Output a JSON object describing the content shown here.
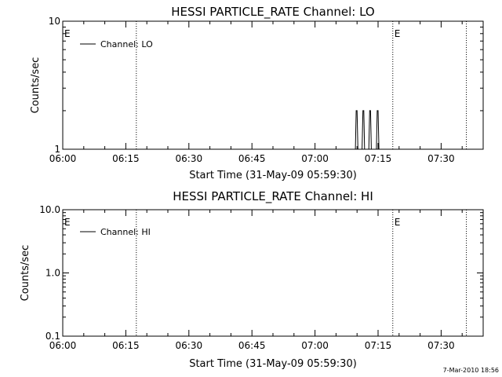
{
  "colors": {
    "background": "#ffffff",
    "foreground": "#000000"
  },
  "footer_timestamp": "7-Mar-2010 18:56",
  "chart_data": [
    {
      "type": "line",
      "title": "HESSI PARTICLE_RATE Channel: LO",
      "xlabel": "Start Time (31-May-09 05:59:30)",
      "ylabel": "Counts/sec",
      "x_ticks": [
        "06:00",
        "06:15",
        "06:30",
        "06:45",
        "07:00",
        "07:15",
        "07:30"
      ],
      "x_ticks_min": [
        0,
        15,
        30,
        45,
        60,
        75,
        90
      ],
      "xlim_min": [
        0,
        100
      ],
      "y_scale": "log",
      "ylim": [
        1,
        10
      ],
      "y_ticks": [
        "1",
        "10"
      ],
      "y_tick_values": [
        1,
        10
      ],
      "legend": {
        "label": "Channel: LO",
        "placement": "top-left"
      },
      "event_markers": [
        {
          "x_min": 0,
          "label": "E"
        },
        {
          "x_min": 17.5,
          "label": ""
        },
        {
          "x_min": 78.5,
          "label": "E"
        },
        {
          "x_min": 96,
          "label": ""
        }
      ],
      "series": [
        {
          "name": "Channel: LO",
          "x_min": [
            0,
            69.6,
            69.8,
            70.0,
            70.2,
            71.2,
            71.4,
            71.6,
            71.8,
            72.8,
            73.0,
            73.2,
            73.4,
            74.6,
            74.8,
            75.0,
            75.2,
            77.0
          ],
          "y": [
            1,
            1,
            2,
            2,
            1,
            1,
            2,
            2,
            1,
            1,
            2,
            2,
            1,
            1,
            2,
            2,
            1,
            1
          ]
        }
      ]
    },
    {
      "type": "line",
      "title": "HESSI PARTICLE_RATE Channel: HI",
      "xlabel": "Start Time (31-May-09 05:59:30)",
      "ylabel": "Counts/sec",
      "x_ticks": [
        "06:00",
        "06:15",
        "06:30",
        "06:45",
        "07:00",
        "07:15",
        "07:30"
      ],
      "x_ticks_min": [
        0,
        15,
        30,
        45,
        60,
        75,
        90
      ],
      "xlim_min": [
        0,
        100
      ],
      "y_scale": "log",
      "ylim": [
        0.1,
        10
      ],
      "y_ticks": [
        "0.1",
        "1.0",
        "10.0"
      ],
      "y_tick_values": [
        0.1,
        1,
        10
      ],
      "legend": {
        "label": "Channel: HI",
        "placement": "top-left"
      },
      "event_markers": [
        {
          "x_min": 0,
          "label": "E"
        },
        {
          "x_min": 17.5,
          "label": ""
        },
        {
          "x_min": 78.5,
          "label": "E"
        },
        {
          "x_min": 96,
          "label": ""
        }
      ],
      "series": [
        {
          "name": "Channel: HI",
          "x_min": [],
          "y": []
        }
      ]
    }
  ]
}
